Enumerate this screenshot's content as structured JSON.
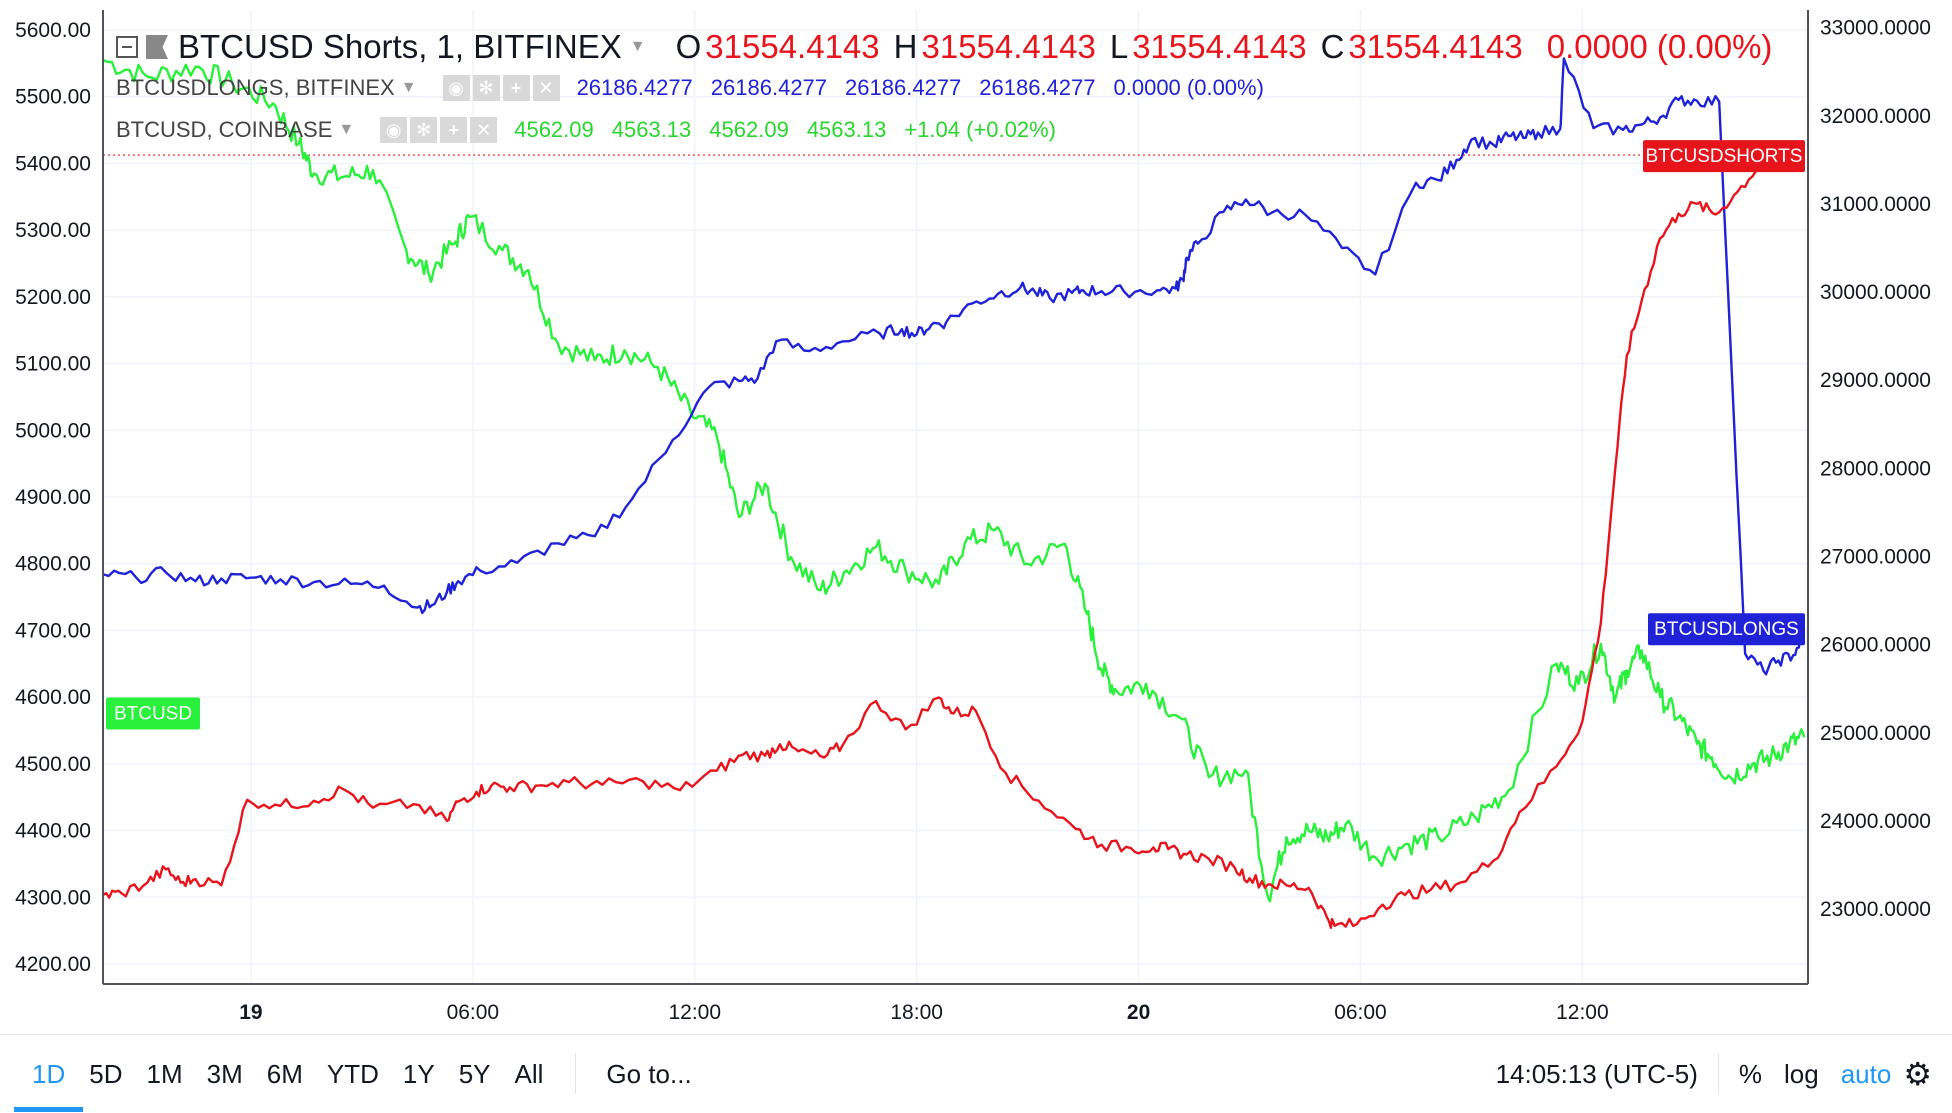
{
  "header": {
    "symbol_title": "BTCUSD Shorts, 1, BITFINEX",
    "ohlc": [
      {
        "k": "O",
        "v": "31554.4143"
      },
      {
        "k": "H",
        "v": "31554.4143"
      },
      {
        "k": "L",
        "v": "31554.4143"
      },
      {
        "k": "C",
        "v": "31554.4143"
      }
    ],
    "change": "0.0000 (0.00%)"
  },
  "legend_longs": {
    "name": "BTCUSDLONGS, BITFINEX",
    "values": [
      "26186.4277",
      "26186.4277",
      "26186.4277",
      "26186.4277",
      "0.0000 (0.00%)"
    ]
  },
  "legend_coinbase": {
    "name": "BTCUSD, COINBASE",
    "values": [
      "4562.09",
      "4563.13",
      "4562.09",
      "4563.13",
      "+1.04 (+0.02%)"
    ]
  },
  "icons": [
    "collapse-icon",
    "flag-icon",
    "caret-down-icon",
    "eye-icon",
    "settings-icon",
    "plus-icon",
    "close-icon",
    "gear-icon"
  ],
  "colors": {
    "shorts": "#e8141c",
    "longs": "#1f22d6",
    "btcusd": "#29f03a",
    "accent": "#2196f3"
  },
  "toolbar": {
    "ranges": [
      "1D",
      "5D",
      "1M",
      "3M",
      "6M",
      "YTD",
      "1Y",
      "5Y",
      "All"
    ],
    "active_range": "1D",
    "goto": "Go to...",
    "time": "14:05:13 (UTC-5)",
    "percent": "%",
    "log": "log",
    "auto": "auto"
  },
  "chart_data": {
    "type": "line",
    "x_ticks": [
      "19",
      "06:00",
      "12:00",
      "18:00",
      "20",
      "06:00",
      "12:00"
    ],
    "left_axis": {
      "ticks": [
        "5600.00",
        "5500.00",
        "5400.00",
        "5300.00",
        "5200.00",
        "5100.00",
        "5000.00",
        "4900.00",
        "4800.00",
        "4700.00",
        "4600.00",
        "4500.00",
        "4400.00",
        "4300.00",
        "4200.00"
      ],
      "range": [
        4170,
        5630
      ]
    },
    "right_axis": {
      "ticks": [
        "33000.0000",
        "32000.0000",
        "31000.0000",
        "30000.0000",
        "29000.0000",
        "28000.0000",
        "27000.0000",
        "26000.0000",
        "25000.0000",
        "24000.0000",
        "23000.0000"
      ],
      "range": [
        22150,
        33200
      ]
    },
    "x_range_hours": [
      0,
      46.1
    ],
    "series": [
      {
        "name": "BTCUSD",
        "axis": "left",
        "color": "#29f03a",
        "tag": "BTCUSD",
        "tag_value": 4577,
        "x": [
          0,
          1.2,
          2.5,
          3.5,
          4.6,
          5.3,
          5.7,
          6.5,
          7.3,
          8.2,
          8.8,
          9.5,
          9.9,
          10.8,
          11.5,
          12.3,
          13.3,
          14.1,
          15.0,
          15.9,
          16.6,
          17.2,
          17.9,
          18.6,
          19.4,
          20.1,
          20.9,
          21.7,
          22.6,
          23.3,
          24.1,
          25.0,
          26.0,
          26.6,
          27.0,
          27.4,
          28.2,
          29.1,
          29.9,
          30.9,
          31.5,
          32.0,
          32.6,
          33.1,
          33.6,
          34.4,
          35.3,
          36.1,
          37.1,
          38.0,
          39.3,
          39.9,
          40.5,
          40.9,
          41.2,
          41.6,
          42.1,
          42.6,
          43.1,
          43.5,
          44.0,
          44.6,
          45.1,
          45.6,
          46.0
        ],
        "y": [
          5555,
          5530,
          5545,
          5520,
          5490,
          5430,
          5385,
          5380,
          5390,
          5270,
          5235,
          5280,
          5320,
          5270,
          5240,
          5130,
          5105,
          5120,
          5095,
          5025,
          4990,
          4870,
          4920,
          4810,
          4760,
          4790,
          4825,
          4790,
          4770,
          4830,
          4850,
          4800,
          4830,
          4725,
          4640,
          4610,
          4620,
          4570,
          4480,
          4490,
          4300,
          4390,
          4400,
          4390,
          4410,
          4360,
          4380,
          4390,
          4420,
          4460,
          4650,
          4620,
          4680,
          4600,
          4640,
          4670,
          4600,
          4570,
          4530,
          4510,
          4480,
          4500,
          4510,
          4530,
          4540
        ]
      },
      {
        "name": "BTCUSDLONGS",
        "axis": "right",
        "color": "#1f22d6",
        "tag": "BTCUSDLONGS",
        "tag_value": 26186,
        "x": [
          0,
          0.9,
          1.7,
          2.5,
          3.2,
          4.0,
          4.8,
          5.7,
          6.7,
          7.6,
          8.5,
          8.9,
          9.3,
          9.6,
          10.2,
          11.2,
          12.3,
          13.3,
          14.3,
          15.4,
          16.4,
          17.2,
          17.7,
          18.2,
          19.1,
          20.0,
          21.0,
          21.6,
          22.0,
          22.4,
          22.8,
          23.5,
          24.2,
          24.8,
          25.2,
          25.6,
          26.2,
          26.5,
          27.0,
          27.6,
          28.5,
          29.0,
          29.2,
          29.3,
          29.6,
          30.3,
          30.9,
          31.6,
          32.5,
          33.5,
          34.4,
          35.5,
          36.1,
          36.6,
          37.0,
          37.6,
          38.0,
          38.4,
          38.8,
          39.4,
          39.5,
          40.3,
          41.1,
          41.6,
          42.1,
          42.6,
          43.1,
          43.7,
          44.4,
          44.9,
          45.3,
          45.7,
          46.0
        ],
        "y": [
          26800,
          26760,
          26820,
          26720,
          26750,
          26760,
          26740,
          26710,
          26690,
          26670,
          26420,
          26450,
          26600,
          26720,
          26840,
          26930,
          27150,
          27230,
          27650,
          28320,
          28930,
          28990,
          29020,
          29440,
          29330,
          29440,
          29530,
          29580,
          29520,
          29630,
          29660,
          29870,
          29980,
          30050,
          30000,
          29930,
          29990,
          30020,
          30010,
          30010,
          30020,
          30040,
          30150,
          30390,
          30550,
          30910,
          31050,
          30900,
          30880,
          30500,
          30200,
          31240,
          31270,
          31500,
          31730,
          31670,
          31770,
          31750,
          31810,
          31850,
          32650,
          31860,
          31840,
          31900,
          31980,
          32180,
          32170,
          32160,
          25900,
          25700,
          25820,
          25880,
          26120
        ]
      },
      {
        "name": "BTCUSDSHORTS",
        "axis": "right",
        "color": "#e8141c",
        "tag": "BTCUSDSHORTS",
        "tag_value": 31554,
        "x": [
          0,
          0.5,
          1.2,
          1.7,
          2.1,
          2.5,
          3.2,
          3.9,
          4.8,
          5.7,
          6.5,
          7.3,
          8.4,
          9.3,
          9.6,
          10.1,
          10.5,
          11.0,
          11.7,
          12.6,
          13.5,
          14.6,
          15.6,
          16.6,
          17.3,
          17.9,
          18.3,
          18.8,
          19.5,
          20.0,
          20.9,
          21.7,
          22.6,
          23.0,
          23.6,
          24.4,
          25.3,
          26.3,
          27.0,
          27.8,
          28.4,
          28.8,
          29.3,
          29.9,
          30.6,
          31.0,
          31.5,
          32.0,
          32.6,
          33.1,
          33.3,
          33.9,
          34.6,
          35.2,
          35.9,
          36.7,
          37.6,
          38.3,
          39.3,
          40.0,
          40.5,
          40.9,
          41.2,
          41.6,
          42.1,
          42.6,
          43.1,
          43.6,
          44.2,
          44.8,
          45.5,
          46.0
        ],
        "y": [
          23160,
          23180,
          23300,
          23450,
          23300,
          23340,
          23270,
          24240,
          24170,
          24230,
          24360,
          24150,
          24190,
          24000,
          24220,
          24330,
          24400,
          24380,
          24400,
          24440,
          24410,
          24450,
          24350,
          24570,
          24750,
          24740,
          24870,
          24790,
          24720,
          24860,
          25360,
          25040,
          25400,
          25220,
          25250,
          24550,
          24230,
          23910,
          23730,
          23690,
          23700,
          23680,
          23620,
          23570,
          23470,
          23350,
          23280,
          23270,
          23240,
          22900,
          22810,
          22830,
          23050,
          23160,
          23220,
          23300,
          23550,
          24100,
          24620,
          25130,
          26250,
          28050,
          29280,
          29900,
          30610,
          30890,
          31000,
          30880,
          31140,
          31450,
          31630,
          31550
        ]
      }
    ]
  }
}
